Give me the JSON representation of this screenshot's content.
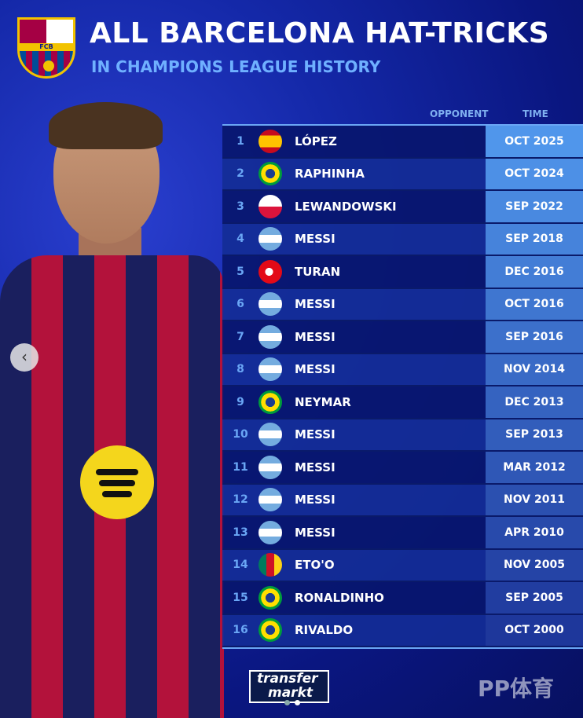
{
  "header": {
    "title": "ALL BARCELONA HAT-TRICKS",
    "subtitle": "IN CHAMPIONS LEAGUE HISTORY",
    "crest_text": "FCB"
  },
  "columns": {
    "opponent": "OPPONENT",
    "time": "TIME"
  },
  "rows": [
    {
      "rank": "1",
      "flag": "spain",
      "name": "LÓPEZ",
      "opponent": "olympiacos-icon",
      "time": "OCT 2025"
    },
    {
      "rank": "2",
      "flag": "brazil",
      "name": "RAPHINHA",
      "opponent": "bayern-icon",
      "time": "OCT 2024"
    },
    {
      "rank": "3",
      "flag": "poland",
      "name": "LEWANDOWSKI",
      "opponent": "viktoria-plzen-icon",
      "time": "SEP 2022"
    },
    {
      "rank": "4",
      "flag": "argentina",
      "name": "MESSI",
      "opponent": "psv-icon",
      "time": "SEP 2018"
    },
    {
      "rank": "5",
      "flag": "turkey",
      "name": "TURAN",
      "opponent": "gladbach-icon",
      "time": "DEC 2016"
    },
    {
      "rank": "6",
      "flag": "argentina",
      "name": "MESSI",
      "opponent": "man-city-icon",
      "time": "OCT 2016"
    },
    {
      "rank": "7",
      "flag": "argentina",
      "name": "MESSI",
      "opponent": "celtic-icon",
      "time": "SEP 2016"
    },
    {
      "rank": "8",
      "flag": "argentina",
      "name": "MESSI",
      "opponent": "apoel-icon",
      "time": "NOV 2014"
    },
    {
      "rank": "9",
      "flag": "brazil",
      "name": "NEYMAR",
      "opponent": "celtic-icon",
      "time": "DEC 2013"
    },
    {
      "rank": "10",
      "flag": "argentina",
      "name": "MESSI",
      "opponent": "ajax-icon",
      "time": "SEP 2013"
    },
    {
      "rank": "11",
      "flag": "argentina",
      "name": "MESSI",
      "opponent": "leverkusen-icon",
      "time": "MAR 2012"
    },
    {
      "rank": "12",
      "flag": "argentina",
      "name": "MESSI",
      "opponent": "viktoria-plzen-icon",
      "time": "NOV 2011"
    },
    {
      "rank": "13",
      "flag": "argentina",
      "name": "MESSI",
      "opponent": "arsenal-icon",
      "time": "APR 2010"
    },
    {
      "rank": "14",
      "flag": "cameroon",
      "name": "ETO'O",
      "opponent": "panathinaikos-icon",
      "time": "NOV 2005"
    },
    {
      "rank": "15",
      "flag": "brazil",
      "name": "RONALDINHO",
      "opponent": "udinese-icon",
      "time": "SEP 2005"
    },
    {
      "rank": "16",
      "flag": "brazil",
      "name": "RIVALDO",
      "opponent": "ac-milan-icon",
      "time": "OCT 2000"
    }
  ],
  "footer": {
    "logo_line1": "transfer",
    "logo_line2": "markt",
    "watermark": "PP体育"
  },
  "carousel": {
    "slides": 2,
    "active": 2
  }
}
